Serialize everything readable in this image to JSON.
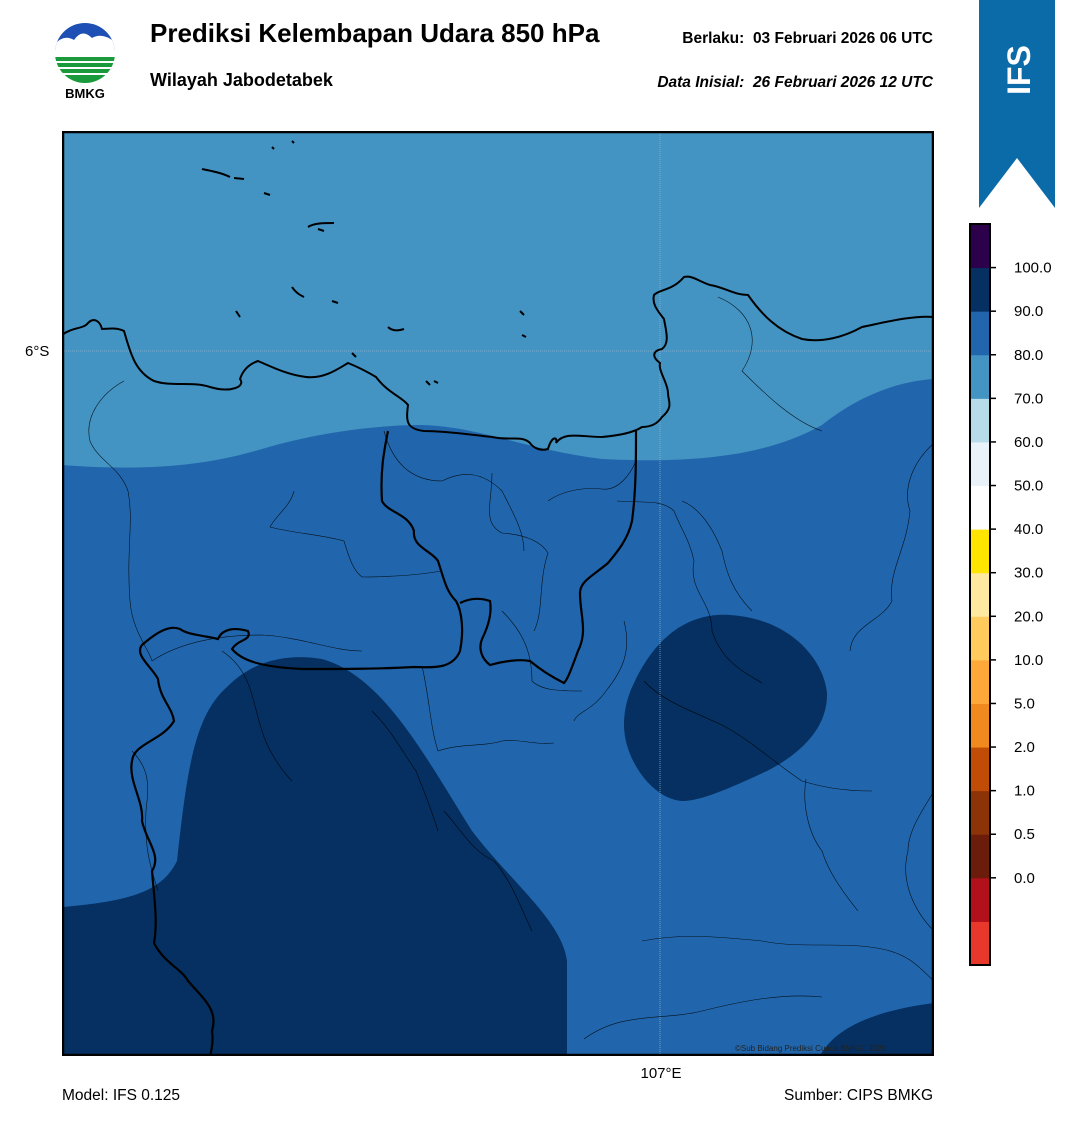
{
  "header": {
    "title": "Prediksi Kelembapan Udara 850 hPa",
    "subtitle": "Wilayah Jabodetabek",
    "valid_label": "Berlaku:",
    "valid_value": "03 Februari 2026 06 UTC",
    "init_label": "Data Inisial:",
    "init_value": "26 Februari 2026 12 UTC"
  },
  "logo": {
    "text": "BMKG",
    "icon": "bmkg-logo-icon"
  },
  "ribbon": {
    "text": "IFS",
    "color": "#0b6aa8"
  },
  "map": {
    "lat_label": "6°S",
    "lon_label": "107°E",
    "copyright": "©Sub Bidang Prediksi Cuaca BMKG, 2020",
    "colors": {
      "band_70_80": "#4393c3",
      "band_80_90": "#2166ac",
      "band_90_100": "#053061",
      "coastline": "#000000"
    }
  },
  "colorbar": {
    "ticks": [
      "100.0",
      "90.0",
      "80.0",
      "70.0",
      "60.0",
      "50.0",
      "40.0",
      "30.0",
      "20.0",
      "10.0",
      "5.0",
      "2.0",
      "1.0",
      "0.5",
      "0.0"
    ],
    "colors_bottom_to_top": [
      "#e8372b",
      "#b2101a",
      "#6b1c0b",
      "#8c3307",
      "#c04c05",
      "#f08a1e",
      "#ffa83a",
      "#ffcb5c",
      "#ffe8a0",
      "#ffe500",
      "#ffffff",
      "#e8f2f8",
      "#b8dbea",
      "#4393c3",
      "#2166ac",
      "#053061",
      "#2d004b"
    ]
  },
  "footer": {
    "model": "Model: IFS 0.125",
    "source": "Sumber: CIPS BMKG"
  }
}
